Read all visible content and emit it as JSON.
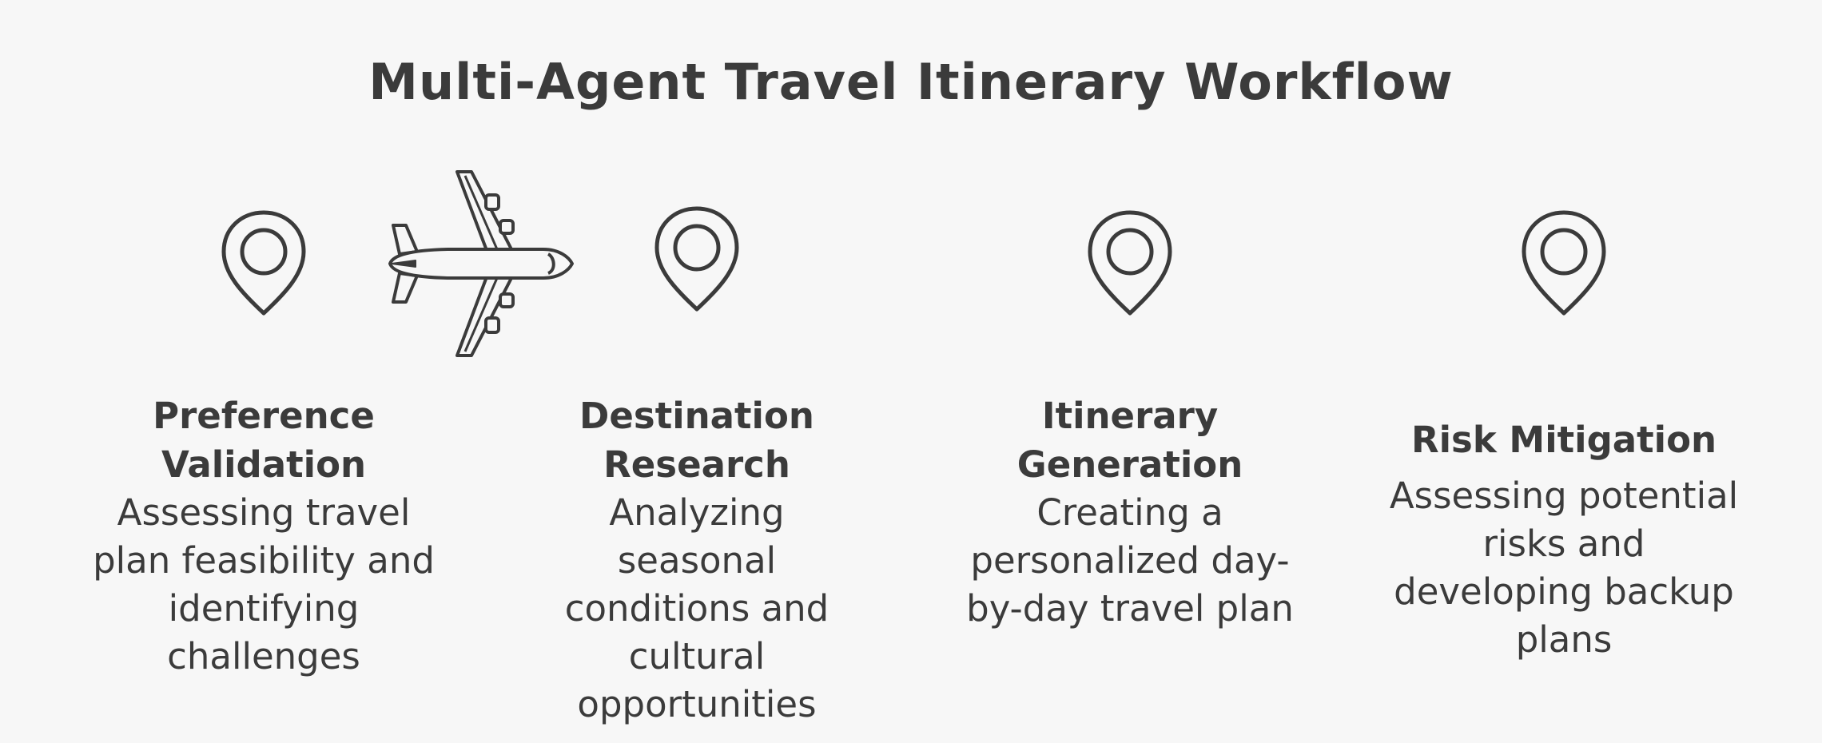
{
  "title": "Multi-Agent Travel Itinerary Workflow",
  "stages": [
    {
      "title_lines": [
        "Preference",
        "Validation"
      ],
      "desc_lines": [
        "Assessing travel",
        "plan feasibility and",
        "identifying",
        "challenges"
      ]
    },
    {
      "title_lines": [
        "Destination",
        "Research"
      ],
      "desc_lines": [
        "Analyzing",
        "seasonal",
        "conditions and",
        "cultural",
        "opportunities"
      ]
    },
    {
      "title_lines": [
        "Itinerary",
        "Generation"
      ],
      "desc_lines": [
        "Creating a",
        "personalized day-",
        "by-day travel plan"
      ]
    },
    {
      "title_lines": [
        "Risk Mitigation"
      ],
      "desc_lines": [
        "Assessing potential",
        "risks and",
        "developing backup",
        "plans"
      ]
    }
  ],
  "icons": {
    "stage_marker": "map-pin-icon",
    "progress": "airplane-icon"
  },
  "colors": {
    "background": "#f7f7f7",
    "ink": "#3b3b3b"
  }
}
